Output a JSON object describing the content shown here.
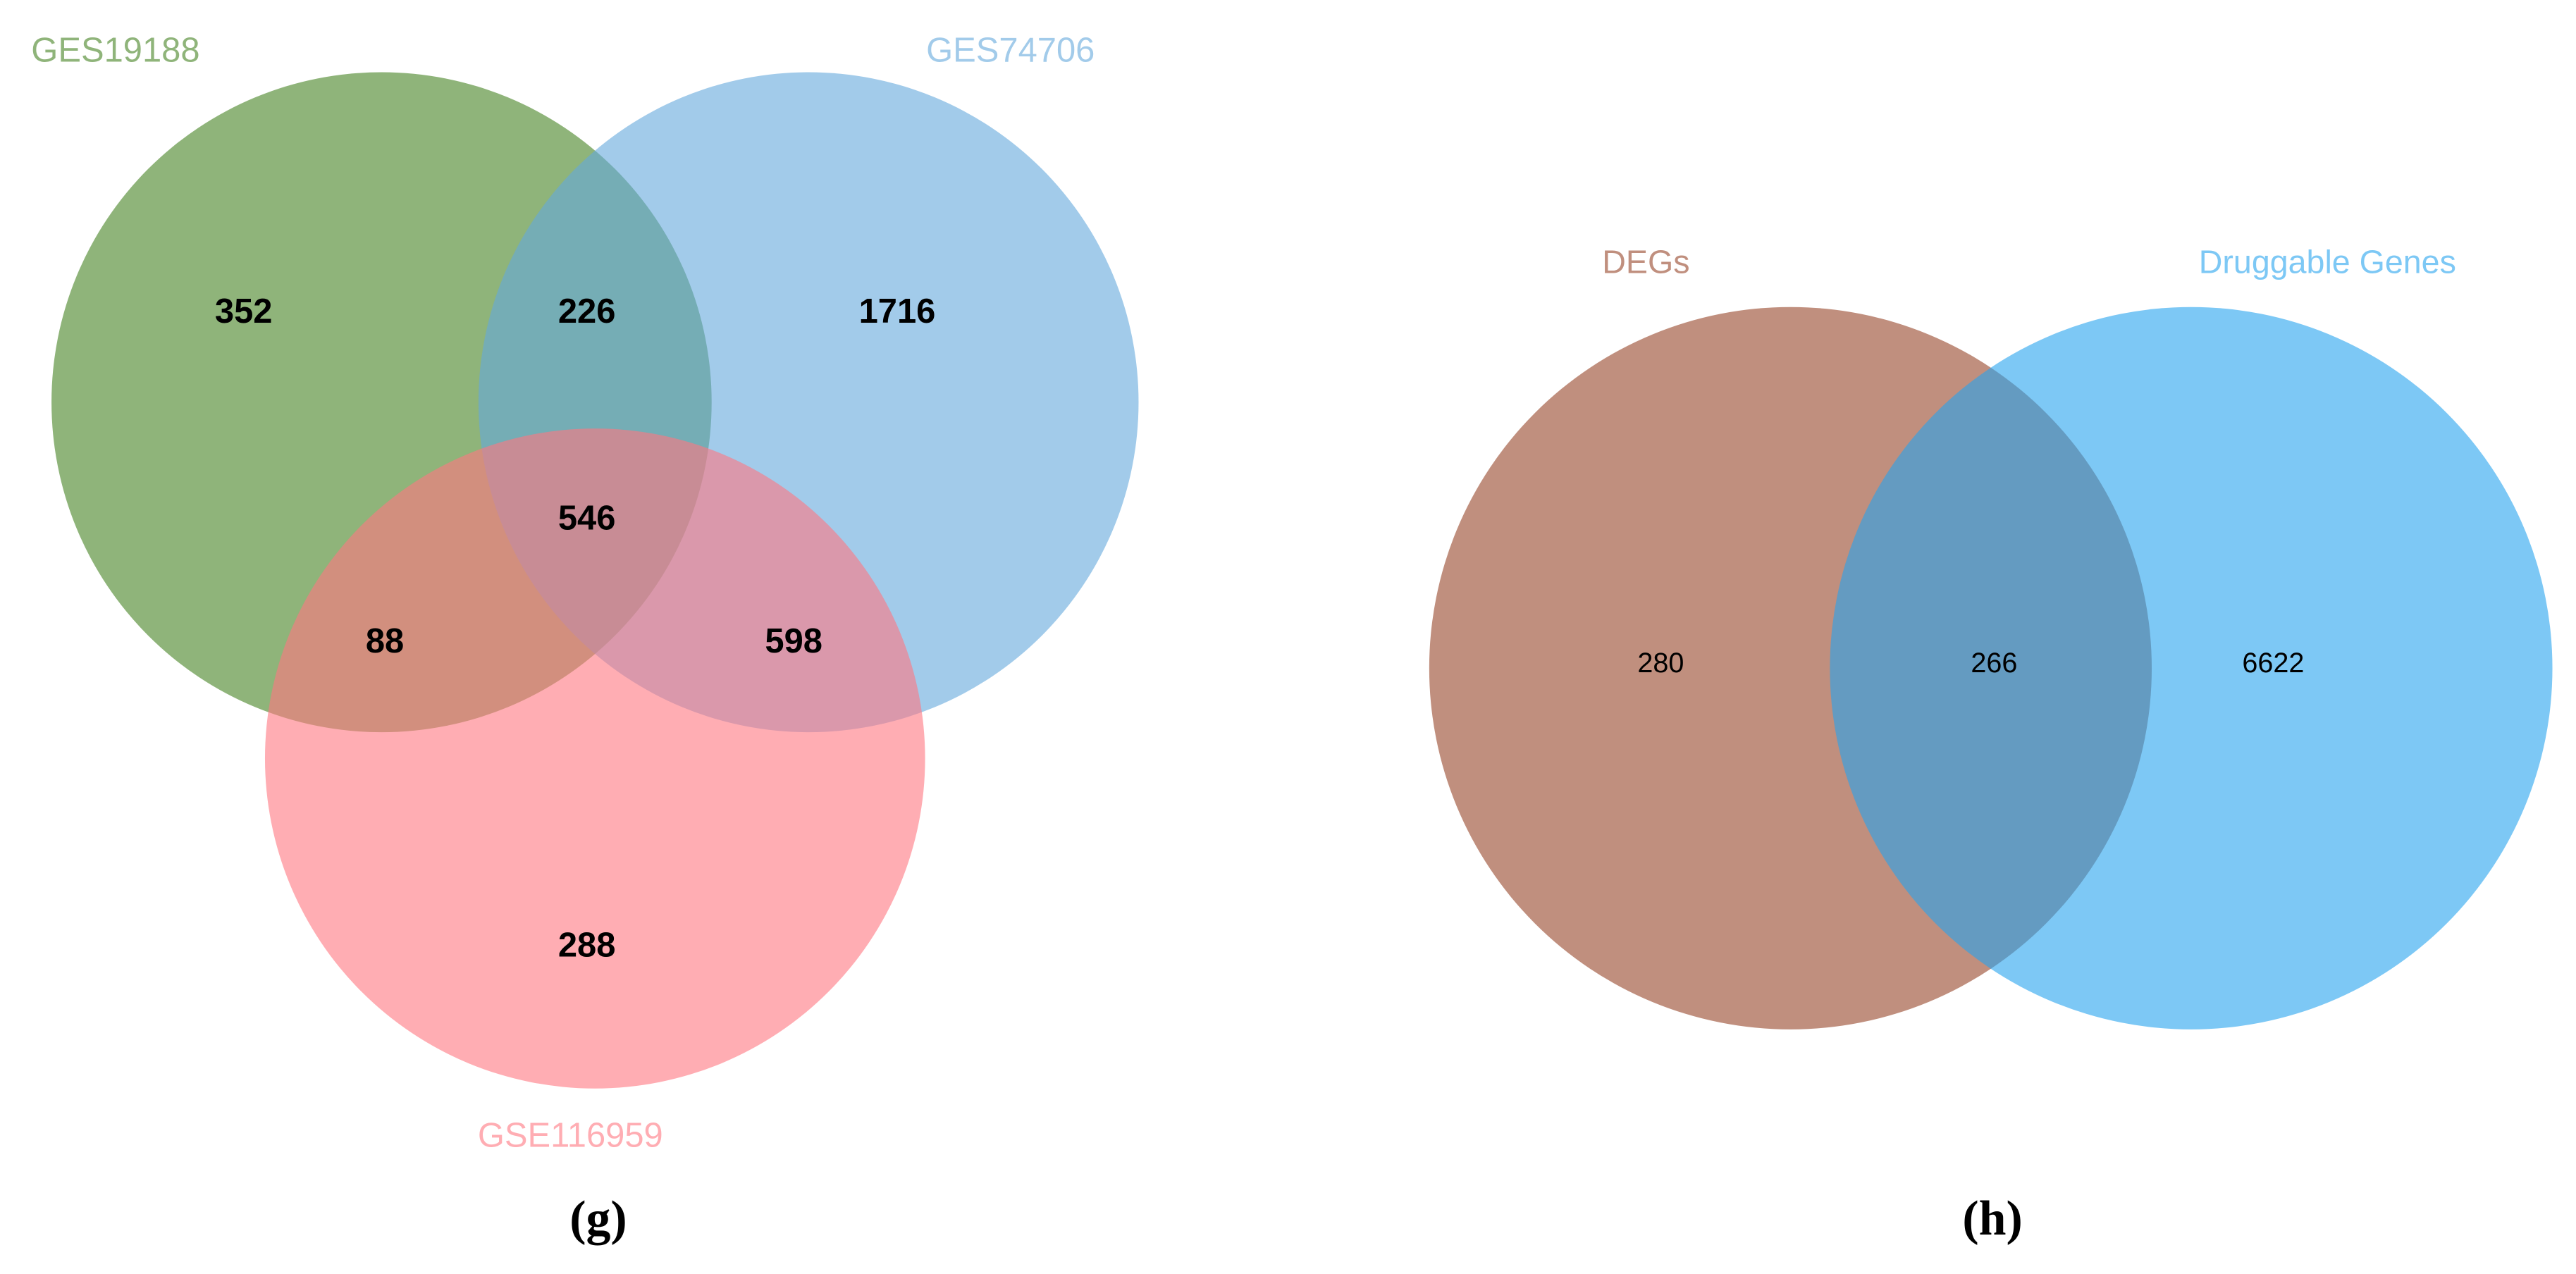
{
  "chart_data": [
    {
      "type": "venn",
      "caption": "(g)",
      "sets": [
        {
          "name": "GES19188",
          "color": "#448221"
        },
        {
          "name": "GES74706",
          "color": "#64a8dc"
        },
        {
          "name": "GSE116959",
          "color": "#ff7680"
        }
      ],
      "regions": [
        {
          "sets": [
            0
          ],
          "value": 352
        },
        {
          "sets": [
            0,
            1
          ],
          "value": 226
        },
        {
          "sets": [
            1
          ],
          "value": 1716
        },
        {
          "sets": [
            0,
            1,
            2
          ],
          "value": 546
        },
        {
          "sets": [
            0,
            2
          ],
          "value": 88
        },
        {
          "sets": [
            1,
            2
          ],
          "value": 598
        },
        {
          "sets": [
            2
          ],
          "value": 288
        }
      ]
    },
    {
      "type": "venn",
      "caption": "(h)",
      "sets": [
        {
          "name": "DEGs",
          "color": "#964428"
        },
        {
          "name": "Druggable Genes",
          "color": "#26a3ee"
        }
      ],
      "regions": [
        {
          "sets": [
            0
          ],
          "value": 280
        },
        {
          "sets": [
            0,
            1
          ],
          "value": 266
        },
        {
          "sets": [
            1
          ],
          "value": 6622
        }
      ]
    }
  ]
}
